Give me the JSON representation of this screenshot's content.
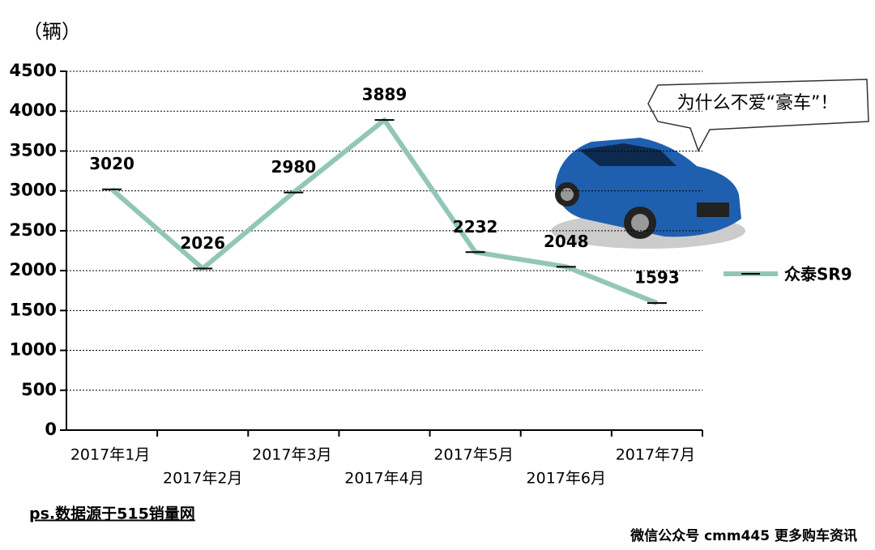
{
  "chart_data": {
    "type": "line",
    "y_label": "（辆）",
    "categories": [
      "2017年1月",
      "2017年2月",
      "2017年3月",
      "2017年4月",
      "2017年5月",
      "2017年6月",
      "2017年7月"
    ],
    "series": [
      {
        "name": "众泰SR9",
        "color": "#93c6b8",
        "values": [
          3020,
          2026,
          2980,
          3889,
          2232,
          2048,
          1593
        ]
      }
    ],
    "ylim": [
      0,
      4500
    ],
    "yticks": [
      0,
      500,
      1000,
      1500,
      2000,
      2500,
      3000,
      3500,
      4000,
      4500
    ],
    "grid": true,
    "annotation": "为什么不爱“豪车”！",
    "footnote": "ps.数据源于515销量网",
    "watermark": "微信公众号 cmm445 更多购车资讯"
  }
}
